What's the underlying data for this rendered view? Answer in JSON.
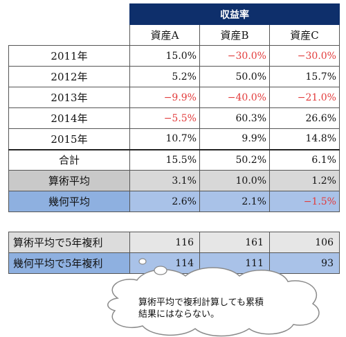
{
  "title": "収益率",
  "columns": [
    "資産A",
    "資産B",
    "資産C"
  ],
  "rows": [
    {
      "label": "2011年",
      "values": [
        "15.0%",
        "−30.0%",
        "−30.0%"
      ]
    },
    {
      "label": "2012年",
      "values": [
        "5.2%",
        "50.0%",
        "15.7%"
      ]
    },
    {
      "label": "2013年",
      "values": [
        "−9.9%",
        "−40.0%",
        "−21.0%"
      ]
    },
    {
      "label": "2014年",
      "values": [
        "−5.5%",
        "60.3%",
        "26.6%"
      ]
    },
    {
      "label": "2015年",
      "values": [
        "10.7%",
        "9.9%",
        "14.8%"
      ]
    }
  ],
  "total": {
    "label": "合計",
    "values": [
      "15.5%",
      "50.2%",
      "6.1%"
    ]
  },
  "arithmetic_mean": {
    "label": "算術平均",
    "values": [
      "3.1%",
      "10.0%",
      "1.2%"
    ]
  },
  "geometric_mean": {
    "label": "幾何平均",
    "values": [
      "2.6%",
      "2.1%",
      "−1.5%"
    ]
  },
  "compound": [
    {
      "label": "算術平均で5年複利",
      "values": [
        "116",
        "161",
        "106"
      ]
    },
    {
      "label": "幾何平均で5年複利",
      "values": [
        "114",
        "111",
        "93"
      ]
    }
  ],
  "callout": {
    "line1": "算術平均で複利計算しても累積",
    "line2": "結果にはならない。"
  },
  "colors": {
    "header_bg": "#0e2f6b",
    "negative": "#e23b3b",
    "gray_row": "#d8d8d8",
    "blue_row": "#a9c2e8"
  }
}
